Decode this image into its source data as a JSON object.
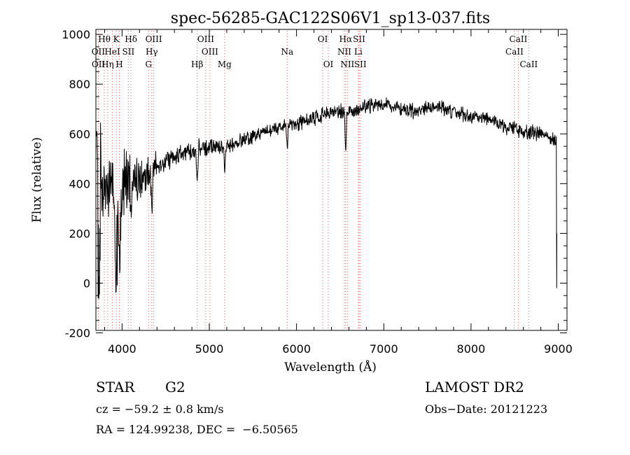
{
  "chart_data": {
    "type": "line",
    "title": "spec-56285-GAC122S06V1_sp13-037.fits",
    "xlabel": "Wavelength (Å)",
    "ylabel": "Flux (relative)",
    "xlim": [
      3700,
      9100
    ],
    "ylim": [
      -190,
      1020
    ],
    "xticks": [
      4000,
      5000,
      6000,
      7000,
      8000,
      9000
    ],
    "yticks": [
      -200,
      0,
      200,
      400,
      600,
      800,
      1000
    ],
    "grid": false,
    "line_color": "#000000",
    "marker_color": "#e06060",
    "continuum": {
      "x": [
        3700,
        3800,
        3900,
        4000,
        4100,
        4200,
        4300,
        4400,
        4500,
        4700,
        4900,
        5000,
        5200,
        5400,
        5600,
        5800,
        5900,
        6000,
        6100,
        6200,
        6400,
        6500,
        6600,
        6700,
        6800,
        7000,
        7200,
        7400,
        7600,
        7700,
        7800,
        8000,
        8200,
        8400,
        8600,
        8800,
        8950,
        8980
      ],
      "y": [
        380,
        350,
        380,
        400,
        410,
        420,
        440,
        470,
        490,
        520,
        545,
        545,
        550,
        575,
        600,
        625,
        640,
        640,
        650,
        660,
        685,
        690,
        690,
        700,
        710,
        720,
        700,
        690,
        710,
        700,
        690,
        670,
        660,
        630,
        610,
        600,
        570,
        560
      ]
    },
    "line_markers": [
      {
        "name": "Hθ",
        "x": 3797,
        "row": 0
      },
      {
        "name": "K",
        "x": 3934,
        "row": 0
      },
      {
        "name": "Hδ",
        "x": 4102,
        "row": 0
      },
      {
        "name": "OIII",
        "x": 4363,
        "row": 0
      },
      {
        "name": "OIII",
        "x": 4959,
        "row": 0
      },
      {
        "name": "OI",
        "x": 6300,
        "row": 0
      },
      {
        "name": "Hα",
        "x": 6563,
        "row": 0
      },
      {
        "name": "SII",
        "x": 6717,
        "row": 0
      },
      {
        "name": "CaII",
        "x": 8542,
        "row": 0
      },
      {
        "name": "OII",
        "x": 3727,
        "row": 1
      },
      {
        "name": "HeI",
        "x": 3889,
        "row": 1
      },
      {
        "name": "SII",
        "x": 4072,
        "row": 1
      },
      {
        "name": "Hγ",
        "x": 4340,
        "row": 1
      },
      {
        "name": "OIII",
        "x": 5007,
        "row": 1
      },
      {
        "name": "Na",
        "x": 5893,
        "row": 1
      },
      {
        "name": "NII",
        "x": 6548,
        "row": 1
      },
      {
        "name": "Li",
        "x": 6708,
        "row": 1
      },
      {
        "name": "CaII",
        "x": 8498,
        "row": 1
      },
      {
        "name": "OII",
        "x": 3729,
        "row": 2
      },
      {
        "name": "Hη",
        "x": 3835,
        "row": 2
      },
      {
        "name": "H",
        "x": 3969,
        "row": 2
      },
      {
        "name": "G",
        "x": 4304,
        "row": 2
      },
      {
        "name": "Hβ",
        "x": 4861,
        "row": 2
      },
      {
        "name": "Mg",
        "x": 5175,
        "row": 2
      },
      {
        "name": "OI",
        "x": 6364,
        "row": 2
      },
      {
        "name": "NII",
        "x": 6583,
        "row": 2
      },
      {
        "name": "SII",
        "x": 6731,
        "row": 2
      },
      {
        "name": "CaII",
        "x": 8662,
        "row": 2
      }
    ]
  },
  "footer": {
    "object_type": "STAR",
    "subclass": "G2",
    "redshift": "cz = −59.2 ± 0.8 km/s",
    "coords": "RA = 124.99238, DEC =  −6.50565",
    "survey": "LAMOST DR2",
    "obs_date": "Obs−Date: 20121223"
  }
}
